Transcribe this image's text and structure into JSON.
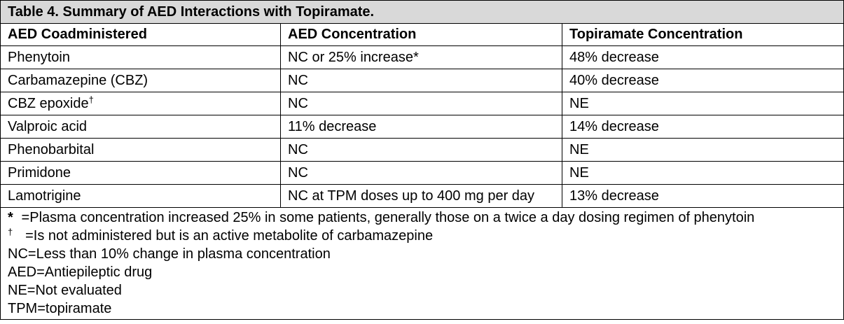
{
  "table": {
    "caption": "Table 4. Summary of AED Interactions with Topiramate.",
    "headers": [
      "AED Coadministered",
      "AED Concentration",
      "Topiramate Concentration"
    ],
    "rows": [
      {
        "drug": "Phenytoin",
        "drug_sup": "",
        "aed": "NC or 25% increase*",
        "tpm": "48% decrease"
      },
      {
        "drug": "Carbamazepine (CBZ)",
        "drug_sup": "",
        "aed": "NC",
        "tpm": "40% decrease"
      },
      {
        "drug": "CBZ epoxide",
        "drug_sup": "†",
        "aed": "NC",
        "tpm": "NE"
      },
      {
        "drug": "Valproic acid",
        "drug_sup": "",
        "aed": "11% decrease",
        "tpm": "14% decrease"
      },
      {
        "drug": "Phenobarbital",
        "drug_sup": "",
        "aed": "NC",
        "tpm": "NE"
      },
      {
        "drug": "Primidone",
        "drug_sup": "",
        "aed": "NC",
        "tpm": "NE"
      },
      {
        "drug": "Lamotrigine",
        "drug_sup": "",
        "aed": "NC at TPM doses up to 400 mg per day",
        "tpm": "13% decrease"
      }
    ],
    "footnotes": [
      {
        "symbol": "*",
        "text": " =Plasma concentration increased 25% in some patients, generally those on a twice a day dosing regimen of phenytoin"
      },
      {
        "symbol": "†",
        "text": "  =Is not administered but is an active metabolite of carbamazepine"
      },
      {
        "symbol": "",
        "text": "NC=Less than 10% change in plasma concentration"
      },
      {
        "symbol": "",
        "text": "AED=Antiepileptic drug"
      },
      {
        "symbol": "",
        "text": "NE=Not evaluated"
      },
      {
        "symbol": "",
        "text": "TPM=topiramate"
      }
    ]
  }
}
